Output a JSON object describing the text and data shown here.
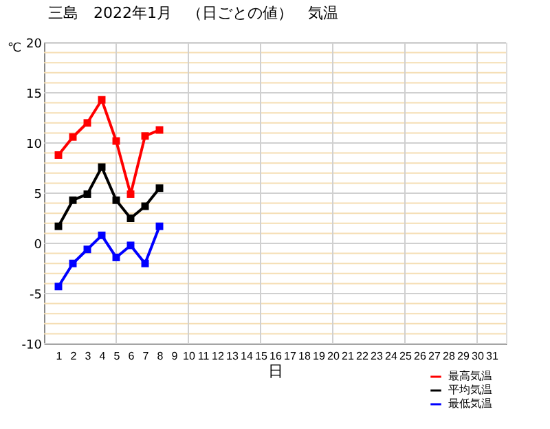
{
  "chart_data": {
    "type": "line",
    "title": "三島　2022年1月　（日ごとの値）　気温",
    "xlabel": "日",
    "ylabel": "℃",
    "x": [
      1,
      2,
      3,
      4,
      5,
      6,
      7,
      8
    ],
    "series": [
      {
        "name": "最高気温",
        "color": "#ff0000",
        "values": [
          8.8,
          10.6,
          12.0,
          14.3,
          10.2,
          4.9,
          10.7,
          11.3
        ]
      },
      {
        "name": "平均気温",
        "color": "#000000",
        "values": [
          1.7,
          4.3,
          4.9,
          7.6,
          4.3,
          2.5,
          3.7,
          5.5
        ]
      },
      {
        "name": "最低気温",
        "color": "#0000ff",
        "values": [
          -4.3,
          -2.0,
          -0.6,
          0.8,
          -1.4,
          -0.2,
          -2.0,
          1.7
        ]
      }
    ],
    "xlim": [
      0,
      32
    ],
    "xticks": [
      1,
      2,
      3,
      4,
      5,
      6,
      7,
      8,
      9,
      10,
      11,
      12,
      13,
      14,
      15,
      16,
      17,
      18,
      19,
      20,
      21,
      22,
      23,
      24,
      25,
      26,
      27,
      28,
      29,
      30,
      31
    ],
    "ylim": [
      -10,
      20
    ],
    "yticks": [
      -10,
      {
        "value": -9,
        "label": null
      },
      {
        "value": -8,
        "label": null
      },
      {
        "value": -7,
        "label": null
      },
      {
        "value": -6,
        "label": null
      },
      -5,
      {
        "value": -4,
        "label": null
      },
      {
        "value": -3,
        "label": null
      },
      {
        "value": -2,
        "label": null
      },
      {
        "value": -1,
        "label": null
      },
      0,
      {
        "value": 1,
        "label": null
      },
      {
        "value": 2,
        "label": null
      },
      {
        "value": 3,
        "label": null
      },
      {
        "value": 4,
        "label": null
      },
      5,
      {
        "value": 6,
        "label": null
      },
      {
        "value": 7,
        "label": null
      },
      {
        "value": 8,
        "label": null
      },
      {
        "value": 9,
        "label": null
      },
      10,
      {
        "value": 11,
        "label": null
      },
      {
        "value": 12,
        "label": null
      },
      {
        "value": 13,
        "label": null
      },
      {
        "value": 14,
        "label": null
      },
      15,
      {
        "value": 16,
        "label": null
      },
      {
        "value": 17,
        "label": null
      },
      {
        "value": 18,
        "label": null
      },
      {
        "value": 19,
        "label": null
      },
      20
    ],
    "grid": true,
    "legend": "bottom right",
    "marker": "square",
    "line_style": "solid"
  }
}
